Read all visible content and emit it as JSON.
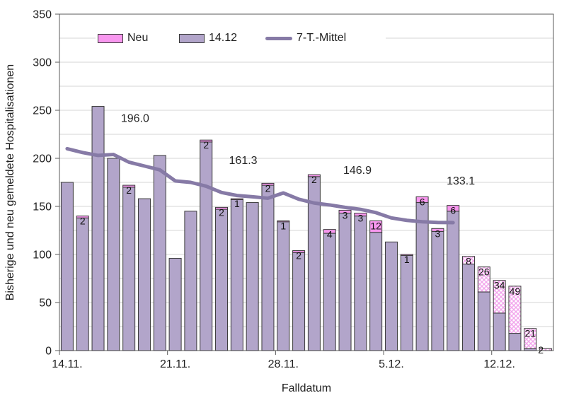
{
  "chart_data": {
    "type": "bar",
    "subtype": "stacked-bars-with-line",
    "title": "",
    "ylabel": "Bisherige und neu gemeldete Hospitalisationen",
    "xlabel": "Falldatum",
    "ylim": [
      0,
      350
    ],
    "y_tick_step": 50,
    "y_grid_step": 25,
    "grid": "on",
    "legend_position": "top-inside",
    "categories": [
      "14.11.",
      "15.11.",
      "16.11.",
      "17.11.",
      "18.11.",
      "19.11.",
      "20.11.",
      "21.11.",
      "22.11.",
      "23.11.",
      "24.11.",
      "25.11.",
      "26.11.",
      "27.11.",
      "28.11.",
      "29.11.",
      "30.11.",
      "1.12.",
      "2.12.",
      "3.12.",
      "4.12.",
      "5.12.",
      "6.12.",
      "7.12.",
      "8.12.",
      "9.12.",
      "10.12.",
      "11.12.",
      "12.12.",
      "13.12.",
      "14.12.",
      "15.12."
    ],
    "x_tick_labels": [
      "14.11.",
      "21.11.",
      "28.11.",
      "5.12.",
      "12.12."
    ],
    "x_tick_indices": [
      0,
      7,
      14,
      21,
      28
    ],
    "series": [
      {
        "name": "14.12",
        "type": "bar",
        "color": "#b2a5ca",
        "values": [
          175,
          138,
          254,
          200,
          170,
          158,
          203,
          96,
          145,
          217,
          147,
          157,
          154,
          172,
          134,
          102,
          181,
          122,
          143,
          140,
          123,
          113,
          99,
          154,
          124,
          145,
          90,
          61,
          39,
          18,
          2,
          0
        ]
      },
      {
        "name": "Neu",
        "type": "bar",
        "color": "#f897ef",
        "hatch_color": "#f2a5ec",
        "hatched_from_index": 26,
        "values": [
          0,
          2,
          0,
          0,
          2,
          0,
          0,
          0,
          0,
          2,
          2,
          1,
          0,
          2,
          1,
          2,
          2,
          4,
          3,
          3,
          12,
          0,
          1,
          6,
          3,
          6,
          8,
          26,
          34,
          49,
          21,
          2
        ]
      },
      {
        "name": "7-T.-Mittel",
        "type": "line",
        "color": "#867aa6",
        "values": [
          210,
          206,
          203,
          204,
          196,
          192,
          188,
          176.5,
          175,
          171,
          164.5,
          161.3,
          160,
          158.5,
          164,
          157.5,
          153.5,
          151.5,
          149,
          146.9,
          143.5,
          138,
          135.5,
          134,
          133.3,
          133.1
        ]
      }
    ],
    "annotations": [
      {
        "text": "196.0",
        "x_index": 4.4,
        "y_value": 242
      },
      {
        "text": "161.3",
        "x_index": 11.4,
        "y_value": 198
      },
      {
        "text": "146.9",
        "x_index": 18.8,
        "y_value": 188
      },
      {
        "text": "133.1",
        "x_index": 25.5,
        "y_value": 177
      }
    ],
    "legend": [
      {
        "label": "Neu",
        "swatch": "pink"
      },
      {
        "label": "14.12",
        "swatch": "purple"
      },
      {
        "label": "7-T.-Mittel",
        "swatch": "line"
      }
    ]
  },
  "colors": {
    "bar_fill": "#b2a5ca",
    "neu_fill": "#f897ef",
    "line": "#867aa6",
    "bar_border": "#3a3a3a",
    "gridline": "#d4d4d4",
    "plot_border": "#595959",
    "text": "#1f1f1f"
  }
}
